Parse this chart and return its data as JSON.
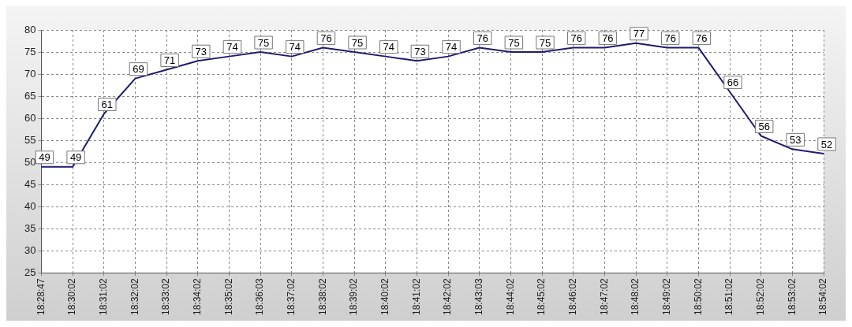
{
  "chart_data": {
    "type": "line",
    "categories": [
      "18:28:47",
      "18:30:02",
      "18:31:02",
      "18:32:02",
      "18:33:02",
      "18:34:02",
      "18:35:02",
      "18:36:03",
      "18:37:02",
      "18:38:02",
      "18:39:02",
      "18:40:02",
      "18:41:02",
      "18:42:02",
      "18:43:03",
      "18:44:02",
      "18:45:02",
      "18:46:02",
      "18:47:02",
      "18:48:02",
      "18:49:02",
      "18:50:02",
      "18:51:02",
      "18:52:02",
      "18:53:02",
      "18:54:02"
    ],
    "series": [
      {
        "color": "#1c1c6e",
        "values": [
          49,
          49,
          61,
          69,
          71,
          73,
          74,
          75,
          74,
          76,
          75,
          74,
          73,
          74,
          76,
          75,
          75,
          76,
          76,
          77,
          76,
          76,
          66,
          56,
          53,
          52
        ]
      }
    ],
    "ylim": [
      25,
      80
    ],
    "yticks": [
      25,
      30,
      35,
      40,
      45,
      50,
      55,
      60,
      65,
      70,
      75,
      80
    ],
    "grid": true,
    "legend": false,
    "marker": "none",
    "line_style": "solid",
    "data_labels": true
  }
}
